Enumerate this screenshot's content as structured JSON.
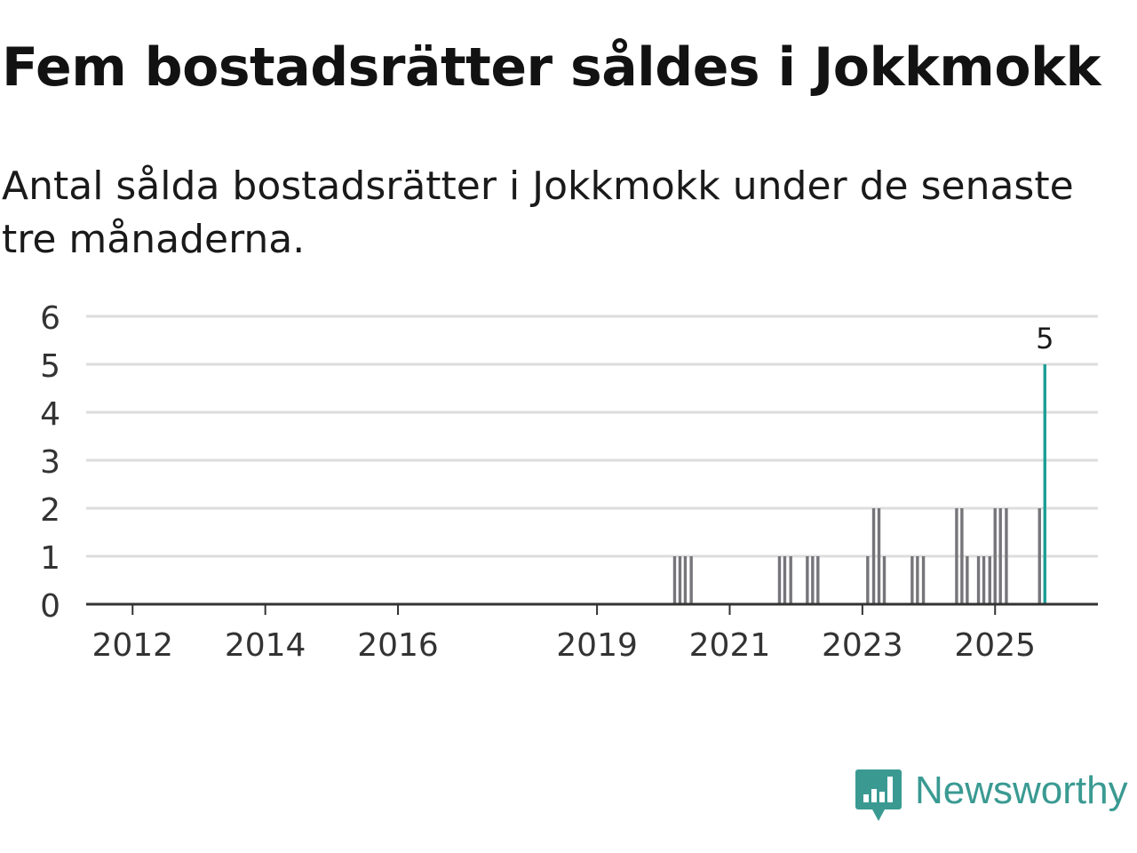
{
  "header": {
    "title": "Fem bostadsrätter såldes i Jokkmokk",
    "subtitle": "Antal sålda bostadsrätter i Jokkmokk under de senaste tre månaderna."
  },
  "brand": {
    "name": "Newsworthy",
    "icon": "newsworthy-logo-icon",
    "color": "#3a9a92"
  },
  "colors": {
    "bar": "#76757a",
    "highlight": "#1c9e94",
    "grid": "#dddddd",
    "axis": "#333333"
  },
  "chart_data": {
    "type": "bar",
    "title": "Fem bostadsrätter såldes i Jokkmokk",
    "xlabel": "",
    "ylabel": "",
    "ylim": [
      0,
      6
    ],
    "yticks": [
      0,
      1,
      2,
      3,
      4,
      5,
      6
    ],
    "xlim": [
      2011.3,
      2026.55
    ],
    "xticks": [
      {
        "label": "2012",
        "value": 2012
      },
      {
        "label": "2014",
        "value": 2014
      },
      {
        "label": "2016",
        "value": 2016
      },
      {
        "label": "2019",
        "value": 2019
      },
      {
        "label": "2021",
        "value": 2021
      },
      {
        "label": "2023",
        "value": 2023
      },
      {
        "label": "2025",
        "value": 2025
      }
    ],
    "grid": true,
    "bar_unit": "month",
    "series": [
      {
        "name": "Antal sålda bostadsrätter",
        "points": [
          {
            "x": 2020.17,
            "y": 1
          },
          {
            "x": 2020.25,
            "y": 1
          },
          {
            "x": 2020.33,
            "y": 1
          },
          {
            "x": 2020.42,
            "y": 1
          },
          {
            "x": 2021.75,
            "y": 1
          },
          {
            "x": 2021.83,
            "y": 1
          },
          {
            "x": 2021.92,
            "y": 1
          },
          {
            "x": 2022.17,
            "y": 1
          },
          {
            "x": 2022.25,
            "y": 1
          },
          {
            "x": 2022.33,
            "y": 1
          },
          {
            "x": 2023.08,
            "y": 1
          },
          {
            "x": 2023.17,
            "y": 2
          },
          {
            "x": 2023.25,
            "y": 2
          },
          {
            "x": 2023.33,
            "y": 1
          },
          {
            "x": 2023.75,
            "y": 1
          },
          {
            "x": 2023.83,
            "y": 1
          },
          {
            "x": 2023.92,
            "y": 1
          },
          {
            "x": 2024.42,
            "y": 2
          },
          {
            "x": 2024.5,
            "y": 2
          },
          {
            "x": 2024.58,
            "y": 1
          },
          {
            "x": 2024.75,
            "y": 1
          },
          {
            "x": 2024.83,
            "y": 1
          },
          {
            "x": 2024.92,
            "y": 1
          },
          {
            "x": 2025.0,
            "y": 2
          },
          {
            "x": 2025.08,
            "y": 2
          },
          {
            "x": 2025.17,
            "y": 2
          },
          {
            "x": 2025.67,
            "y": 2
          },
          {
            "x": 2025.75,
            "y": 5,
            "highlight": true,
            "label": "5"
          }
        ]
      }
    ]
  }
}
